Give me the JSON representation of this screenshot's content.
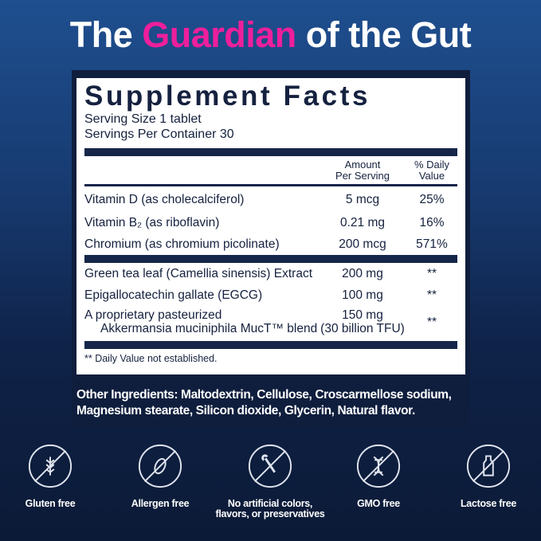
{
  "headline": {
    "pre": "The ",
    "highlight": "Guardian",
    "post": " of the Gut",
    "highlight_color": "#ee1f9c"
  },
  "facts": {
    "title": "Supplement Facts",
    "serving_size": "Serving Size 1 tablet",
    "servings_per_container": "Servings Per Container 30",
    "col_amount": [
      "Amount",
      "Per Serving"
    ],
    "col_dv": [
      "% Daily",
      "Value"
    ],
    "rows": [
      {
        "name": "Vitamin D (as cholecalciferol)",
        "amount": "5 mcg",
        "dv": "25%"
      },
      {
        "name": "Vitamin B₂ (as riboflavin)",
        "amount": "0.21 mg",
        "dv": "16%"
      },
      {
        "name": "Chromium (as chromium picolinate)",
        "amount": "200 mcg",
        "dv": "571%"
      },
      {
        "name": "Green tea leaf (Camellia sinensis) Extract",
        "amount": "200 mg",
        "dv": "**"
      },
      {
        "name": "Epigallocatechin gallate (EGCG)",
        "amount": "100 mg",
        "dv": "**"
      },
      {
        "name": "A proprietary pasteurized",
        "name2": "Akkermansia muciniphila MucT™ blend",
        "amount": "150 mg",
        "amount2": "(30 billion TFU)",
        "dv": "**"
      }
    ],
    "footnote": "** Daily Value not established."
  },
  "other_ingredients": "Other Ingredients: Maltodextrin, Cellulose, Croscarmellose sodium, Magnesium stearate, Silicon dioxide, Glycerin, Natural flavor.",
  "badges": [
    {
      "icon": "wheat-icon",
      "label": "Gluten free"
    },
    {
      "icon": "peanut-icon",
      "label": "Allergen free"
    },
    {
      "icon": "dropper-icon",
      "label": "No artificial colors,",
      "label2": "flavors, or preservatives"
    },
    {
      "icon": "dna-icon",
      "label": "GMO free"
    },
    {
      "icon": "milk-bottle-icon",
      "label": "Lactose free"
    }
  ]
}
